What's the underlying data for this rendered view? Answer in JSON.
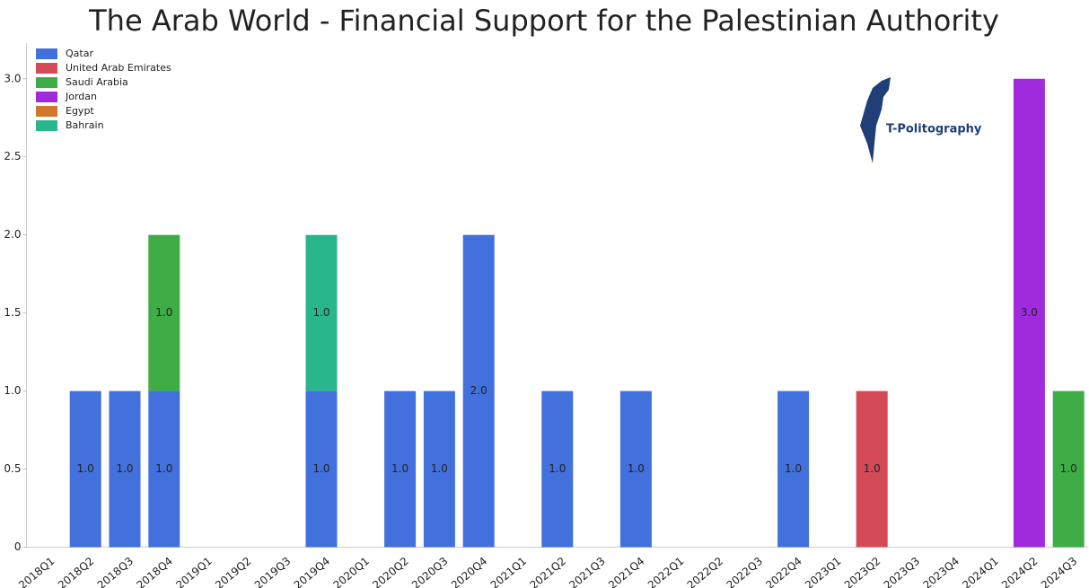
{
  "chart_data": {
    "type": "stacked-bar",
    "title": "The Arab World - Financial Support for the Palestinian Authority",
    "logo_text": "T-Politography",
    "categories": [
      "2018Q1",
      "2018Q2",
      "2018Q3",
      "2018Q4",
      "2019Q1",
      "2019Q2",
      "2019Q3",
      "2019Q4",
      "2020Q1",
      "2020Q2",
      "2020Q3",
      "2020Q4",
      "2021Q1",
      "2021Q2",
      "2021Q3",
      "2021Q4",
      "2022Q1",
      "2022Q2",
      "2022Q3",
      "2022Q4",
      "2023Q1",
      "2023Q2",
      "2023Q3",
      "2023Q4",
      "2024Q1",
      "2024Q2",
      "2024Q3"
    ],
    "series": [
      {
        "name": "Qatar",
        "color": "#4270dd",
        "values": [
          null,
          1,
          1,
          1,
          null,
          null,
          null,
          1,
          null,
          1,
          1,
          2,
          null,
          1,
          null,
          1,
          null,
          null,
          null,
          1,
          null,
          null,
          null,
          null,
          null,
          null,
          null
        ],
        "value_labels": [
          null,
          "1.0",
          "1.0",
          "1.0",
          null,
          null,
          null,
          "1.0",
          null,
          "1.0",
          "1.0",
          "2.0",
          null,
          "1.0",
          null,
          "1.0",
          null,
          null,
          null,
          "1.0",
          null,
          null,
          null,
          null,
          null,
          null,
          null
        ]
      },
      {
        "name": "United Arab Emirates",
        "color": "#d44a57",
        "values": [
          null,
          null,
          null,
          null,
          null,
          null,
          null,
          null,
          null,
          null,
          null,
          null,
          null,
          null,
          null,
          null,
          null,
          null,
          null,
          null,
          null,
          1,
          null,
          null,
          null,
          null,
          null
        ],
        "value_labels": [
          null,
          null,
          null,
          null,
          null,
          null,
          null,
          null,
          null,
          null,
          null,
          null,
          null,
          null,
          null,
          null,
          null,
          null,
          null,
          null,
          null,
          "1.0",
          null,
          null,
          null,
          null,
          null
        ]
      },
      {
        "name": "Saudi Arabia",
        "color": "#3fad46",
        "values": [
          null,
          null,
          null,
          1,
          null,
          null,
          null,
          null,
          null,
          null,
          null,
          null,
          null,
          null,
          null,
          null,
          null,
          null,
          null,
          null,
          null,
          null,
          null,
          null,
          null,
          null,
          1
        ],
        "value_labels": [
          null,
          null,
          null,
          "1.0",
          null,
          null,
          null,
          null,
          null,
          null,
          null,
          null,
          null,
          null,
          null,
          null,
          null,
          null,
          null,
          null,
          null,
          null,
          null,
          null,
          null,
          null,
          "1.0"
        ]
      },
      {
        "name": "Jordan",
        "color": "#9f2bdd",
        "values": [
          null,
          null,
          null,
          null,
          null,
          null,
          null,
          null,
          null,
          null,
          null,
          null,
          null,
          null,
          null,
          null,
          null,
          null,
          null,
          null,
          null,
          null,
          null,
          null,
          null,
          3,
          null
        ],
        "value_labels": [
          null,
          null,
          null,
          null,
          null,
          null,
          null,
          null,
          null,
          null,
          null,
          null,
          null,
          null,
          null,
          null,
          null,
          null,
          null,
          null,
          null,
          null,
          null,
          null,
          null,
          "3.0",
          null
        ]
      },
      {
        "name": "Egypt",
        "color": "#d2762a",
        "values": [
          null,
          null,
          null,
          null,
          null,
          null,
          null,
          null,
          null,
          null,
          null,
          null,
          null,
          null,
          null,
          null,
          null,
          null,
          null,
          null,
          null,
          null,
          null,
          null,
          null,
          null,
          null
        ]
      },
      {
        "name": "Bahrain",
        "color": "#2ab68d",
        "values": [
          null,
          null,
          null,
          null,
          null,
          null,
          null,
          1,
          null,
          null,
          null,
          null,
          null,
          null,
          null,
          null,
          null,
          null,
          null,
          null,
          null,
          null,
          null,
          null,
          null,
          null,
          null
        ],
        "value_labels": [
          null,
          null,
          null,
          null,
          null,
          null,
          null,
          "1.0",
          null,
          null,
          null,
          null,
          null,
          null,
          null,
          null,
          null,
          null,
          null,
          null,
          null,
          null,
          null,
          null,
          null,
          null,
          null
        ]
      }
    ],
    "ylim": [
      0,
      3.2
    ],
    "yticks": [
      0,
      0.5,
      {
        "value": 1,
        "label": "1.0"
      },
      1.5,
      {
        "value": 2,
        "label": "2.0"
      },
      2.5,
      {
        "value": 3,
        "label": "3.0"
      }
    ],
    "legend": "top-left"
  }
}
